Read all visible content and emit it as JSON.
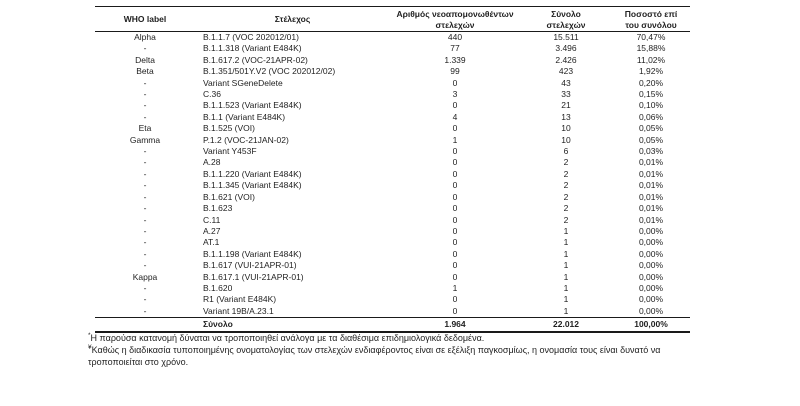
{
  "table": {
    "headers": [
      {
        "line1": "WHO label"
      },
      {
        "line1": "Στέλεχος"
      },
      {
        "line1": "Αριθμός νεοαπομονωθέντων",
        "line2": "στελεχών"
      },
      {
        "line1": "Σύνολο",
        "line2": "στελεχών"
      },
      {
        "line1": "Ποσοστό επί",
        "line2": "του συνόλου"
      }
    ],
    "rows": [
      {
        "who": "Alpha",
        "strain": "B.1.1.7 (VOC 202012/01)",
        "new": "440",
        "total": "15.511",
        "pct": "70,47%"
      },
      {
        "who": "-",
        "strain": "B.1.1.318 (Variant E484K)",
        "new": "77",
        "total": "3.496",
        "pct": "15,88%"
      },
      {
        "who": "Delta",
        "strain": "B.1.617.2 (VOC-21APR-02)",
        "new": "1.339",
        "total": "2.426",
        "pct": "11,02%"
      },
      {
        "who": "Beta",
        "strain": "B.1.351/501Y.V2 (VOC 202012/02)",
        "new": "99",
        "total": "423",
        "pct": "1,92%"
      },
      {
        "who": "-",
        "strain": "Variant SGeneDelete",
        "new": "0",
        "total": "43",
        "pct": "0,20%"
      },
      {
        "who": "-",
        "strain": "C.36",
        "new": "3",
        "total": "33",
        "pct": "0,15%"
      },
      {
        "who": "-",
        "strain": "B.1.1.523 (Variant E484K)",
        "new": "0",
        "total": "21",
        "pct": "0,10%"
      },
      {
        "who": "-",
        "strain": "B.1.1 (Variant E484K)",
        "new": "4",
        "total": "13",
        "pct": "0,06%"
      },
      {
        "who": "Eta",
        "strain": "B.1.525 (VOI)",
        "new": "0",
        "total": "10",
        "pct": "0,05%"
      },
      {
        "who": "Gamma",
        "strain": "P.1.2 (VOC-21JAN-02)",
        "new": "1",
        "total": "10",
        "pct": "0,05%"
      },
      {
        "who": "-",
        "strain": "Variant Y453F",
        "new": "0",
        "total": "6",
        "pct": "0,03%"
      },
      {
        "who": "-",
        "strain": "A.28",
        "new": "0",
        "total": "2",
        "pct": "0,01%"
      },
      {
        "who": "-",
        "strain": "B.1.1.220 (Variant E484K)",
        "new": "0",
        "total": "2",
        "pct": "0,01%"
      },
      {
        "who": "-",
        "strain": "B.1.1.345 (Variant E484K)",
        "new": "0",
        "total": "2",
        "pct": "0,01%"
      },
      {
        "who": "-",
        "strain": "B.1.621 (VOI)",
        "new": "0",
        "total": "2",
        "pct": "0,01%"
      },
      {
        "who": "-",
        "strain": "B.1.623",
        "new": "0",
        "total": "2",
        "pct": "0,01%"
      },
      {
        "who": "-",
        "strain": "C.11",
        "new": "0",
        "total": "2",
        "pct": "0,01%"
      },
      {
        "who": "-",
        "strain": "A.27",
        "new": "0",
        "total": "1",
        "pct": "0,00%"
      },
      {
        "who": "-",
        "strain": "AT.1",
        "new": "0",
        "total": "1",
        "pct": "0,00%"
      },
      {
        "who": "-",
        "strain": "B.1.1.198 (Variant E484K)",
        "new": "0",
        "total": "1",
        "pct": "0,00%"
      },
      {
        "who": "-",
        "strain": "B.1.617 (VUI-21APR-01)",
        "new": "0",
        "total": "1",
        "pct": "0,00%"
      },
      {
        "who": "Kappa",
        "strain": "B.1.617.1 (VUI-21APR-01)",
        "new": "0",
        "total": "1",
        "pct": "0,00%"
      },
      {
        "who": "-",
        "strain": "B.1.620",
        "new": "1",
        "total": "1",
        "pct": "0,00%"
      },
      {
        "who": "-",
        "strain": "R1 (Variant E484K)",
        "new": "0",
        "total": "1",
        "pct": "0,00%"
      },
      {
        "who": "-",
        "strain": "Variant 19B/A.23.1",
        "new": "0",
        "total": "1",
        "pct": "0,00%"
      }
    ],
    "total_row": {
      "who": "",
      "label": "Σύνολο",
      "new": "1.964",
      "total": "22.012",
      "pct": "100,00%"
    }
  },
  "footnotes": [
    {
      "marker": "*",
      "text": "Η παρούσα κατανομή δύναται να τροποποιηθεί ανάλογα με τα διαθέσιμα επιδημιολογικά δεδομένα."
    },
    {
      "marker": "¥",
      "text": "Καθώς η διαδικασία τυποποιημένης ονοματολογίας των στελεχών ενδιαφέροντος είναι σε εξέλιξη παγκοσμίως, η ονομασία τους είναι δυνατό να τροποποιείται στο χρόνο."
    }
  ],
  "colors": {
    "text": "#1f1f1f",
    "rule": "#1a1a1a",
    "background": "#ffffff"
  }
}
